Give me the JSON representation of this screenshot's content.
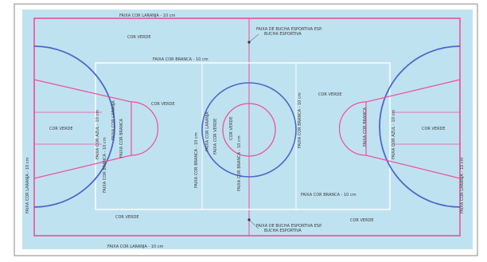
{
  "colors": {
    "page": "#ffffff",
    "frame": "#8a8a8a",
    "court": "#bfe2f1",
    "pink": "#ef4f98",
    "blue": "#4d67c8",
    "white": "#ffffff",
    "dark": "#333333"
  },
  "labels": {
    "top_orange_strip": "FAIXA COR LARANJA - 10 cm",
    "bottom_orange_strip": "FAIXA COR LARANJA - 10 cm",
    "left_orange_strip": "FAIXA COR LARANJA - 10 cm",
    "right_orange_strip": "FAIXA COR LARANJA - 10 cm",
    "green_top_left": "COR VERDE",
    "green_left": "COR VERDE",
    "green_center_left": "COR VERDE",
    "green_center_right": "COR VERDE",
    "green_right": "COR VERDE",
    "green_bottom_left": "COR VERDE",
    "green_bottom_right": "COR VERDE",
    "top_white_strip": "FAIXA COR BRANCA - 10 cm",
    "bottom_white_strip": "FAIXA COR BRANCA - 10 cm",
    "left_blue_strip": "FAIXA COR AZUL - 10 cm",
    "right_blue_strip": "FAIXA COR AZUL - 10 cm",
    "left_key_orange": "FAIXA COR LARANJA",
    "left_key_white": "FAIXA COR BRANCA",
    "right_key_white": "FAIXA COR BRANCA",
    "left_white_strip_1": "FAIXA COR BRANCA - 10 cm",
    "left_white_strip_2": "FAIXA COR BRANCA - 10 cm",
    "center_line_strip": "FAIXA COR BRANCA - 10 cm",
    "center_circle_orange": "FAIXA COR LARANJA",
    "center_circle_strip": "FAIXA COR VERDE",
    "right_white_strip_1": "FAIXA COR BRANCA - 10 cm",
    "center_circle_fill": "COR VERDE",
    "sport_strip_top": "FAIXA DE BUCHA ESPORTIVA ESP.",
    "sport_strip_top_sub": "BUCHA ESPORTIVA",
    "sport_strip_bottom": "FAIXA DE BUCHA ESPORTIVA ESP.",
    "sport_strip_bottom_sub": "BUCHA ESPORTIVA"
  }
}
